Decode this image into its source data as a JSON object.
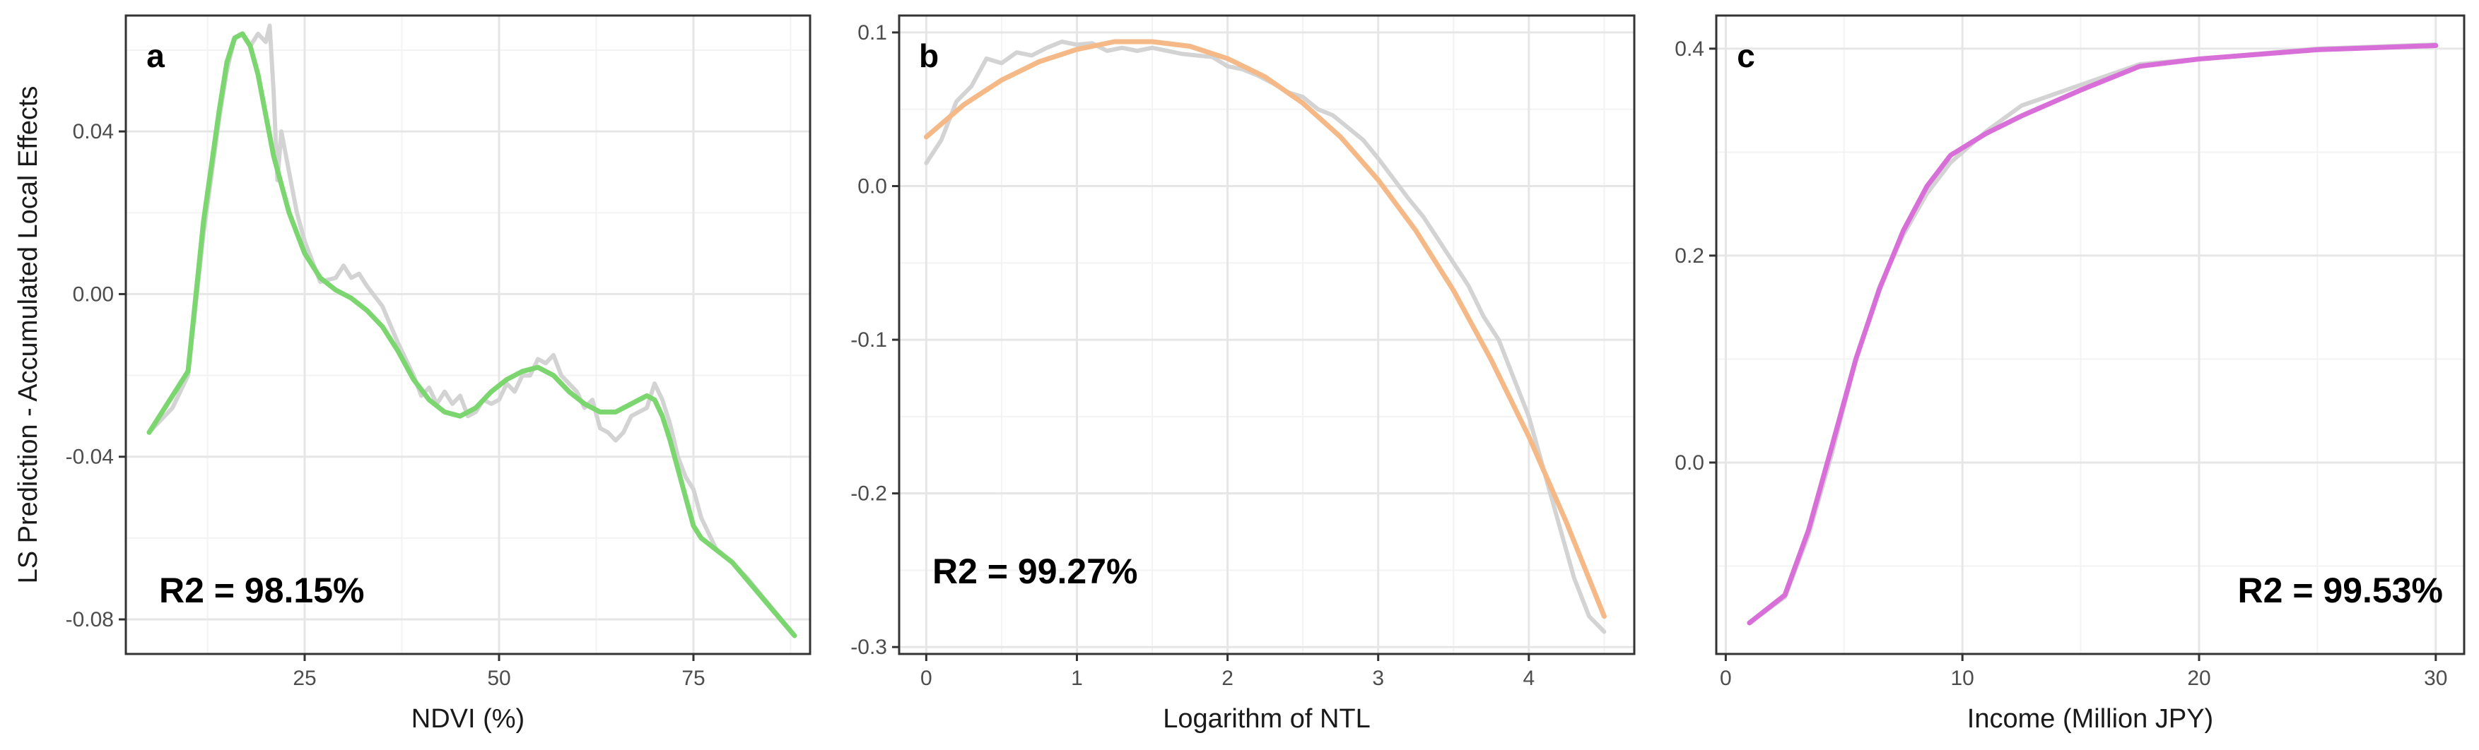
{
  "y_axis_title": "LS Prediction - Accumulated Local Effects",
  "colors": {
    "panel_border": "#333333",
    "grid_major": "#e6e6e6",
    "grid_minor": "#f3f3f3",
    "tick": "#333333",
    "raw_line": "#d3d3d3"
  },
  "chart_data": [
    {
      "type": "line",
      "panel_label": "a",
      "xlabel": "NDVI (%)",
      "ylabel": "LS Prediction - Accumulated Local Effects",
      "annotation": "R2 = 98.15%",
      "annotation_position": "bottom-left",
      "panel_label_position": "top-left",
      "xlim": [
        2,
        90
      ],
      "ylim": [
        -0.0885,
        0.0685
      ],
      "x_ticks": [
        25,
        50,
        75
      ],
      "x_tick_labels": [
        "25",
        "50",
        "75"
      ],
      "y_ticks": [
        -0.08,
        -0.04,
        0.0,
        0.04
      ],
      "y_tick_labels": [
        "-0.08",
        "-0.04",
        "0.00",
        "0.04"
      ],
      "grid": true,
      "series": [
        {
          "role": "raw",
          "color": "#d3d3d3",
          "x": [
            5,
            8,
            10,
            12,
            14,
            15,
            16,
            17,
            18,
            19,
            20,
            20.5,
            21,
            21.5,
            22,
            23,
            24,
            25,
            27,
            29,
            30,
            31,
            32,
            33,
            35,
            37,
            39,
            40,
            41,
            42,
            43,
            44,
            45,
            46,
            47,
            48,
            49,
            50,
            51,
            52,
            53,
            54,
            55,
            56,
            57,
            58,
            59,
            60,
            61,
            62,
            63,
            64,
            65,
            66,
            67,
            68,
            69,
            70,
            71,
            72,
            73,
            74,
            75,
            76,
            78,
            80,
            82,
            85,
            88
          ],
          "y": [
            -0.034,
            -0.028,
            -0.02,
            0.015,
            0.043,
            0.055,
            0.063,
            0.064,
            0.061,
            0.064,
            0.062,
            0.066,
            0.05,
            0.028,
            0.04,
            0.03,
            0.02,
            0.013,
            0.003,
            0.004,
            0.007,
            0.004,
            0.005,
            0.002,
            -0.003,
            -0.012,
            -0.02,
            -0.025,
            -0.023,
            -0.027,
            -0.024,
            -0.027,
            -0.025,
            -0.03,
            -0.029,
            -0.026,
            -0.027,
            -0.026,
            -0.022,
            -0.024,
            -0.02,
            -0.02,
            -0.016,
            -0.017,
            -0.015,
            -0.02,
            -0.022,
            -0.024,
            -0.028,
            -0.026,
            -0.033,
            -0.034,
            -0.036,
            -0.034,
            -0.03,
            -0.029,
            -0.028,
            -0.022,
            -0.026,
            -0.032,
            -0.04,
            -0.045,
            -0.048,
            -0.055,
            -0.063,
            -0.066,
            -0.07,
            -0.077,
            -0.084
          ]
        },
        {
          "role": "fit",
          "color": "#7bd66f",
          "x": [
            5,
            10,
            12,
            14,
            15,
            16,
            17,
            18,
            19,
            20,
            21,
            22,
            23,
            24,
            25,
            27,
            29,
            31,
            33,
            35,
            37,
            39,
            41,
            43,
            45,
            47,
            49,
            51,
            53,
            55,
            57,
            59,
            61,
            63,
            65,
            67,
            69,
            70,
            71,
            72,
            73,
            74,
            75,
            76,
            80,
            84,
            88
          ],
          "y": [
            -0.034,
            -0.019,
            0.018,
            0.045,
            0.057,
            0.063,
            0.064,
            0.061,
            0.054,
            0.044,
            0.034,
            0.027,
            0.02,
            0.015,
            0.01,
            0.004,
            0.001,
            -0.001,
            -0.004,
            -0.008,
            -0.014,
            -0.021,
            -0.026,
            -0.029,
            -0.03,
            -0.028,
            -0.024,
            -0.021,
            -0.019,
            -0.018,
            -0.02,
            -0.024,
            -0.027,
            -0.029,
            -0.029,
            -0.027,
            -0.025,
            -0.026,
            -0.03,
            -0.036,
            -0.043,
            -0.05,
            -0.057,
            -0.06,
            -0.066,
            -0.075,
            -0.084
          ]
        }
      ]
    },
    {
      "type": "line",
      "panel_label": "b",
      "xlabel": "Logarithm of NTL",
      "annotation": "R2 = 99.27%",
      "annotation_position": "bottom-left",
      "panel_label_position": "top-left",
      "xlim": [
        -0.18,
        4.7
      ],
      "ylim": [
        -0.3045,
        0.111
      ],
      "x_ticks": [
        0,
        1,
        2,
        3,
        4
      ],
      "x_tick_labels": [
        "0",
        "1",
        "2",
        "3",
        "4"
      ],
      "y_ticks": [
        -0.3,
        -0.2,
        -0.1,
        0.0,
        0.1
      ],
      "y_tick_labels": [
        "-0.3",
        "-0.2",
        "-0.1",
        "0.0",
        "0.1"
      ],
      "grid": true,
      "series": [
        {
          "role": "raw",
          "color": "#d3d3d3",
          "x": [
            0,
            0.1,
            0.2,
            0.3,
            0.4,
            0.5,
            0.6,
            0.7,
            0.8,
            0.9,
            1.0,
            1.1,
            1.2,
            1.3,
            1.4,
            1.5,
            1.6,
            1.7,
            1.8,
            1.9,
            2.0,
            2.1,
            2.2,
            2.3,
            2.4,
            2.5,
            2.6,
            2.7,
            2.8,
            2.9,
            3.0,
            3.1,
            3.2,
            3.3,
            3.4,
            3.5,
            3.6,
            3.7,
            3.8,
            3.9,
            4.0,
            4.1,
            4.2,
            4.3,
            4.4,
            4.5
          ],
          "y": [
            0.015,
            0.03,
            0.055,
            0.065,
            0.083,
            0.08,
            0.087,
            0.085,
            0.09,
            0.094,
            0.092,
            0.093,
            0.088,
            0.09,
            0.088,
            0.09,
            0.088,
            0.086,
            0.085,
            0.084,
            0.078,
            0.076,
            0.072,
            0.067,
            0.061,
            0.058,
            0.05,
            0.046,
            0.038,
            0.03,
            0.018,
            0.005,
            -0.008,
            -0.02,
            -0.035,
            -0.05,
            -0.065,
            -0.085,
            -0.1,
            -0.125,
            -0.15,
            -0.185,
            -0.22,
            -0.255,
            -0.28,
            -0.29
          ]
        },
        {
          "role": "fit",
          "color": "#f5b887",
          "x": [
            0,
            0.25,
            0.5,
            0.75,
            1.0,
            1.25,
            1.5,
            1.75,
            2.0,
            2.25,
            2.5,
            2.75,
            3.0,
            3.25,
            3.5,
            3.75,
            4.0,
            4.25,
            4.5
          ],
          "y": [
            0.032,
            0.053,
            0.069,
            0.081,
            0.089,
            0.094,
            0.094,
            0.091,
            0.083,
            0.071,
            0.054,
            0.032,
            0.004,
            -0.029,
            -0.068,
            -0.113,
            -0.163,
            -0.219,
            -0.28
          ]
        }
      ]
    },
    {
      "type": "line",
      "panel_label": "c",
      "xlabel": "Income (Million JPY)",
      "annotation": "R2 = 99.53%",
      "annotation_position": "bottom-right",
      "panel_label_position": "top-left",
      "xlim": [
        -0.4,
        31.2
      ],
      "ylim": [
        -0.185,
        0.432
      ],
      "x_ticks": [
        0,
        10,
        20,
        30
      ],
      "x_tick_labels": [
        "0",
        "10",
        "20",
        "30"
      ],
      "y_ticks": [
        0.0,
        0.2,
        0.4
      ],
      "y_tick_labels": [
        "0.0",
        "0.2",
        "0.4"
      ],
      "grid": true,
      "series": [
        {
          "role": "raw",
          "color": "#d3d3d3",
          "x": [
            1,
            2.5,
            3.5,
            4.5,
            5.5,
            6.5,
            7.5,
            8.5,
            9.5,
            11,
            12.5,
            15,
            17.5,
            20,
            25,
            30
          ],
          "y": [
            -0.155,
            -0.13,
            -0.07,
            0.01,
            0.1,
            0.17,
            0.22,
            0.26,
            0.29,
            0.32,
            0.345,
            0.365,
            0.385,
            0.39,
            0.4,
            0.404
          ]
        },
        {
          "role": "fit",
          "color": "#d86fd8",
          "x": [
            1,
            2.5,
            3.5,
            4.5,
            5.5,
            6.5,
            7.5,
            8.5,
            9.5,
            11,
            12.5,
            15,
            17.5,
            20,
            25,
            30
          ],
          "y": [
            -0.155,
            -0.128,
            -0.065,
            0.017,
            0.1,
            0.168,
            0.224,
            0.267,
            0.297,
            0.318,
            0.335,
            0.36,
            0.383,
            0.39,
            0.399,
            0.403
          ]
        }
      ]
    }
  ]
}
